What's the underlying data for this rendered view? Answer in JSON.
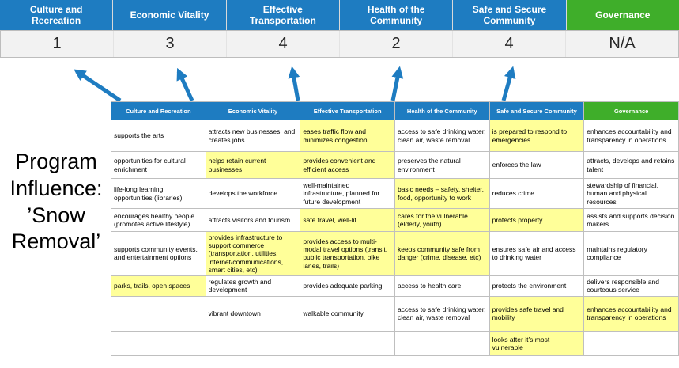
{
  "title": "Program Influence: ’Snow Removal’",
  "colors": {
    "header_blue": "#1E7CC1",
    "governance_green": "#3FAE2A",
    "highlight_yellow": "#FFFF99",
    "score_band_bg": "#F2F2F2",
    "arrow_blue": "#1E7CC1"
  },
  "scoreboard": {
    "columns": [
      {
        "label": "Culture and Recreation",
        "score": "1",
        "header_color": "#1E7CC1"
      },
      {
        "label": "Economic Vitality",
        "score": "3",
        "header_color": "#1E7CC1"
      },
      {
        "label": "Effective Transportation",
        "score": "4",
        "header_color": "#1E7CC1"
      },
      {
        "label": "Health of the Community",
        "score": "2",
        "header_color": "#1E7CC1"
      },
      {
        "label": "Safe and Secure Community",
        "score": "4",
        "header_color": "#1E7CC1"
      },
      {
        "label": "Governance",
        "score": "N/A",
        "header_color": "#3FAE2A"
      }
    ]
  },
  "matrix": {
    "headers": [
      {
        "label": "Culture and Recreation",
        "color": "#1E7CC1"
      },
      {
        "label": "Economic Vitality",
        "color": "#1E7CC1"
      },
      {
        "label": "Effective Transportation",
        "color": "#1E7CC1"
      },
      {
        "label": "Health of the Community",
        "color": "#1E7CC1"
      },
      {
        "label": "Safe and Secure Community",
        "color": "#1E7CC1"
      },
      {
        "label": "Governance",
        "color": "#3FAE2A"
      }
    ],
    "rows": [
      [
        {
          "text": "supports the arts",
          "highlight": false
        },
        {
          "text": "attracts new businesses, and creates jobs",
          "highlight": false
        },
        {
          "text": "eases traffic flow and minimizes congestion",
          "highlight": true
        },
        {
          "text": "access to safe drinking water, clean air, waste removal",
          "highlight": false
        },
        {
          "text": "is prepared to respond to emergencies",
          "highlight": true
        },
        {
          "text": "enhances accountability and transparency in operations",
          "highlight": false
        }
      ],
      [
        {
          "text": "opportunities for cultural enrichment",
          "highlight": false
        },
        {
          "text": "helps retain current businesses",
          "highlight": true
        },
        {
          "text": "provides convenient and efficient access",
          "highlight": true
        },
        {
          "text": "preserves the natural environment",
          "highlight": false
        },
        {
          "text": "enforces the law",
          "highlight": false
        },
        {
          "text": "attracts, develops and retains talent",
          "highlight": false
        }
      ],
      [
        {
          "text": "life-long learning opportunities (libraries)",
          "highlight": false
        },
        {
          "text": "develops the workforce",
          "highlight": false
        },
        {
          "text": "well-maintained infrastructure, planned for future development",
          "highlight": false
        },
        {
          "text": "basic needs – safety, shelter, food, opportunity to work",
          "highlight": true
        },
        {
          "text": "reduces crime",
          "highlight": false
        },
        {
          "text": "stewardship of financial, human and physical resources",
          "highlight": false
        }
      ],
      [
        {
          "text": "encourages healthy people (promotes active lifestyle)",
          "highlight": false
        },
        {
          "text": "attracts visitors and tourism",
          "highlight": false
        },
        {
          "text": "safe travel, well-lit",
          "highlight": true
        },
        {
          "text": "cares for the vulnerable (elderly, youth)",
          "highlight": true
        },
        {
          "text": "protects property",
          "highlight": true
        },
        {
          "text": "assists and supports decision makers",
          "highlight": false
        }
      ],
      [
        {
          "text": "supports community events, and entertainment options",
          "highlight": false
        },
        {
          "text": "provides infrastructure to support commerce (transportation, utilities, internet/communications, smart cities, etc)",
          "highlight": true
        },
        {
          "text": "provides access to multi-modal travel options (transit, public transportation, bike lanes, trails)",
          "highlight": true
        },
        {
          "text": "keeps community safe from danger (crime, disease, etc)",
          "highlight": true
        },
        {
          "text": "ensures safe air and access to drinking water",
          "highlight": false
        },
        {
          "text": "maintains regulatory compliance",
          "highlight": false
        }
      ],
      [
        {
          "text": "parks, trails, open spaces",
          "highlight": true
        },
        {
          "text": "regulates growth and development",
          "highlight": false
        },
        {
          "text": "provides adequate parking",
          "highlight": false
        },
        {
          "text": "access to health care",
          "highlight": false
        },
        {
          "text": "protects the environment",
          "highlight": false
        },
        {
          "text": "delivers responsible and courteous service",
          "highlight": false
        }
      ],
      [
        {
          "text": "",
          "highlight": false
        },
        {
          "text": "vibrant downtown",
          "highlight": false
        },
        {
          "text": "walkable community",
          "highlight": false
        },
        {
          "text": "access to safe drinking water, clean air, waste removal",
          "highlight": false
        },
        {
          "text": "provides safe travel and mobility",
          "highlight": true
        },
        {
          "text": "enhances accountability and transparency in operations",
          "highlight": true
        }
      ],
      [
        {
          "text": "",
          "highlight": false
        },
        {
          "text": "",
          "highlight": false
        },
        {
          "text": "",
          "highlight": false
        },
        {
          "text": "",
          "highlight": false
        },
        {
          "text": "looks after it’s most vulnerable",
          "highlight": true
        },
        {
          "text": "",
          "highlight": false
        }
      ]
    ]
  }
}
